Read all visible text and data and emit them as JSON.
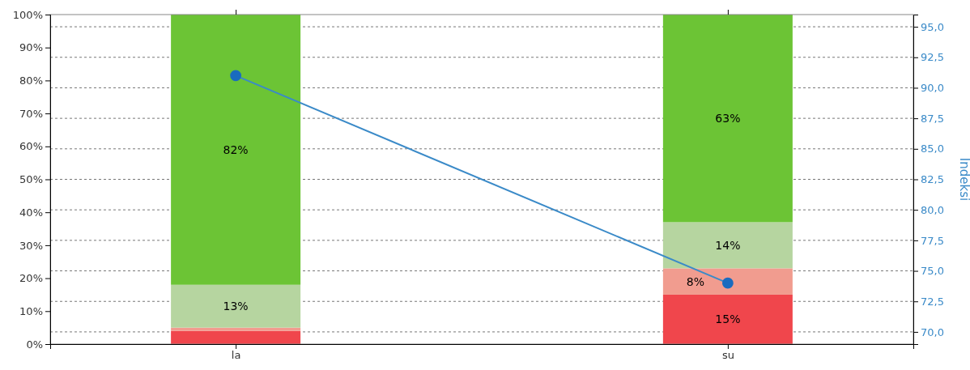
{
  "chart_data": {
    "type": "bar",
    "stacked": true,
    "categories": [
      "la",
      "su"
    ],
    "series": [
      {
        "color": "#f0464c",
        "values": [
          4,
          15
        ],
        "value_labels": [
          null,
          "15%"
        ]
      },
      {
        "color": "#f19c8f",
        "values": [
          1,
          8
        ],
        "value_labels": [
          null,
          "8%"
        ]
      },
      {
        "color": "#b6d5a0",
        "values": [
          13,
          14
        ],
        "value_labels": [
          "13%",
          "14%"
        ]
      },
      {
        "color": "#6cc435",
        "values": [
          82,
          63
        ],
        "value_labels": [
          "82%",
          "63%"
        ]
      },
      {
        "type": "line",
        "axis": "y2",
        "color": "#3a8ac8",
        "values": [
          91.0,
          74.0
        ],
        "marker": "circle"
      }
    ],
    "ylim": [
      0,
      100
    ],
    "yticks": [
      {
        "value": 0,
        "label": "0%"
      },
      {
        "value": 10,
        "label": "10%"
      },
      {
        "value": 20,
        "label": "20%"
      },
      {
        "value": 30,
        "label": "30%"
      },
      {
        "value": 40,
        "label": "40%"
      },
      {
        "value": 50,
        "label": "50%"
      },
      {
        "value": 60,
        "label": "60%"
      },
      {
        "value": 70,
        "label": "70%"
      },
      {
        "value": 80,
        "label": "80%"
      },
      {
        "value": 90,
        "label": "90%"
      },
      {
        "value": 100,
        "label": "100%"
      }
    ],
    "y2lim": [
      69,
      96
    ],
    "y2ticks": [
      {
        "value": 70,
        "label": "70,0"
      },
      {
        "value": 72.5,
        "label": "72,5"
      },
      {
        "value": 75,
        "label": "75,0"
      },
      {
        "value": 77.5,
        "label": "77,5"
      },
      {
        "value": 80,
        "label": "80,0"
      },
      {
        "value": 82.5,
        "label": "82,5"
      },
      {
        "value": 85,
        "label": "85,0"
      },
      {
        "value": 87.5,
        "label": "87,5"
      },
      {
        "value": 90,
        "label": "90,0"
      },
      {
        "value": 92.5,
        "label": "92,5"
      },
      {
        "value": 95,
        "label": "95,0"
      }
    ],
    "y2label": "Indeksi",
    "grid": "y2"
  }
}
